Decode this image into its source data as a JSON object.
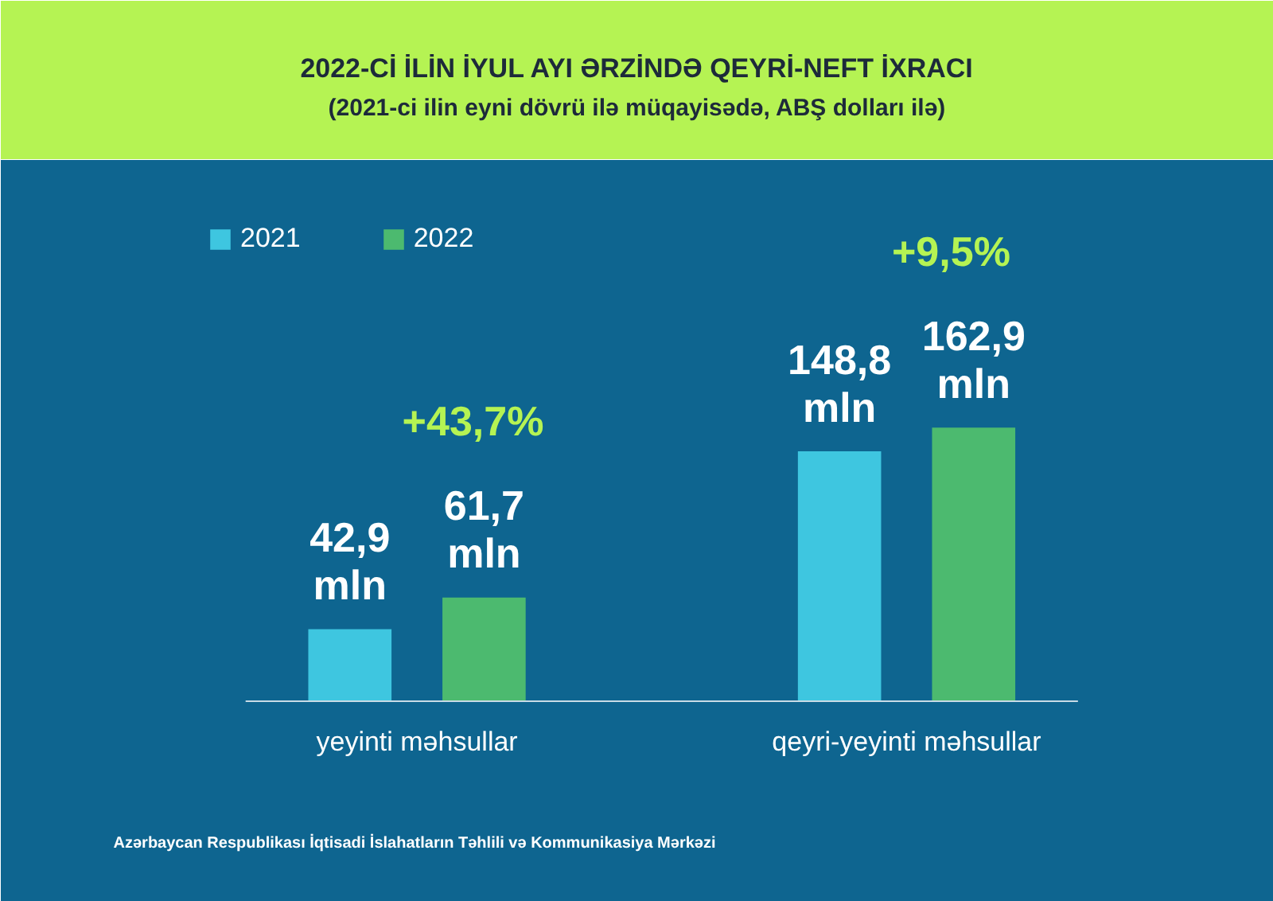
{
  "chart_data": {
    "type": "bar",
    "title": "2022-Cİ İLİN İYUL AYI ƏRZİNDƏ QEYRİ-NEFT İXRACI",
    "subtitle": "(2021-ci ilin eyni dövrü ilə müqayisədə, ABŞ dolları ilə)",
    "categories": [
      "yeyinti məhsullar",
      "qeyri-yeyinti məhsullar"
    ],
    "series": [
      {
        "name": "2021",
        "color": "#3ec6e0",
        "values": [
          42.9,
          148.8
        ],
        "value_labels": [
          "42,9 mln",
          "148,8 mln"
        ]
      },
      {
        "name": "2022",
        "color": "#4cba6f",
        "values": [
          61.7,
          162.9
        ],
        "value_labels": [
          "61,7 mln",
          "162,9 mln"
        ]
      }
    ],
    "annotations": [
      "+43,7%",
      "+9,5%",
      "Azərbaycan Respublikası İqtisadi İslahatların Təhlili və Kommunikasiya Mərkəzi"
    ],
    "legend": "top left",
    "grid": false
  }
}
